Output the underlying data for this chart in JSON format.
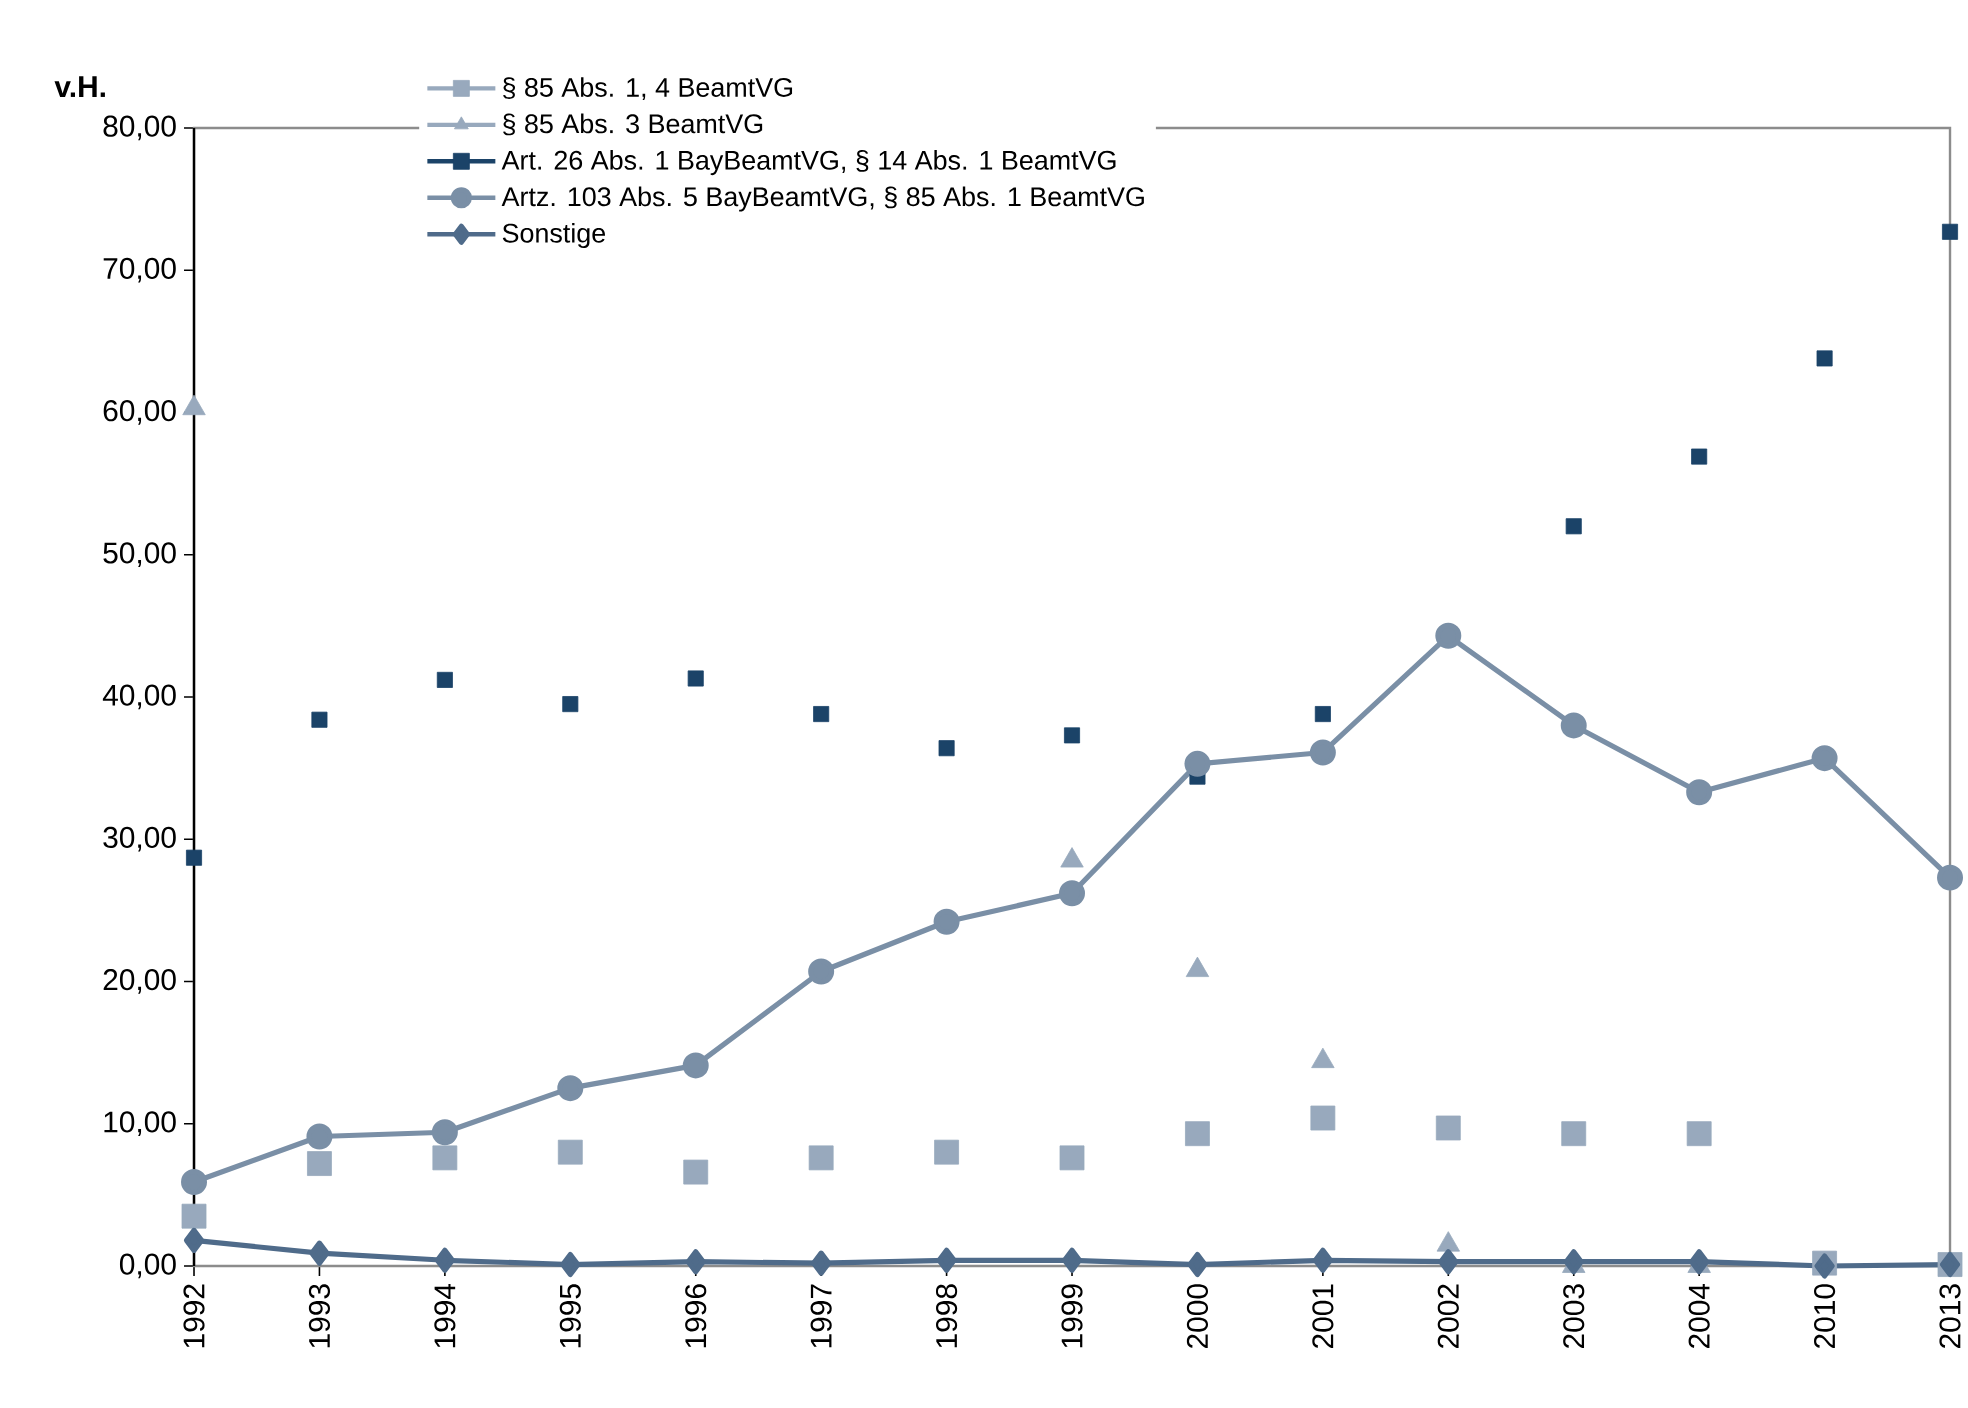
{
  "chart_data": {
    "type": "line",
    "ylabel": "v.H.",
    "categories": [
      "1992",
      "1993",
      "1994",
      "1995",
      "1996",
      "1997",
      "1998",
      "1999",
      "2000",
      "2001",
      "2002",
      "2003",
      "2004",
      "2010",
      "2013"
    ],
    "series": [
      {
        "name": "§ 85 Abs. 1, 4 BeamtVG",
        "type": "scatter",
        "marker": "square",
        "color": "#98a9bd",
        "values": [
          3.5,
          7.2,
          7.6,
          8.0,
          6.6,
          7.6,
          8.0,
          7.6,
          9.3,
          10.4,
          9.7,
          9.3,
          9.3,
          0.2,
          0.1
        ]
      },
      {
        "name": "§ 85 Abs. 3 BeamtVG",
        "type": "scatter",
        "marker": "triangle",
        "color": "#98a9bd",
        "values": [
          60.3,
          null,
          null,
          null,
          null,
          null,
          null,
          28.5,
          20.8,
          14.4,
          1.5,
          0.0,
          0.0,
          null,
          null
        ]
      },
      {
        "name": "Art. 26 Abs. 1 BayBeamtVG, § 14 Abs. 1 BeamtVG",
        "type": "scatter",
        "marker": "square",
        "color": "#1b4368",
        "values": [
          28.7,
          38.4,
          41.2,
          39.5,
          41.3,
          38.8,
          36.4,
          37.3,
          34.4,
          38.8,
          null,
          52.0,
          56.9,
          63.8,
          72.7
        ]
      },
      {
        "name": "Artz. 103 Abs. 5 BayBeamtVG, § 85 Abs. 1 BeamtVG",
        "marker": "circle",
        "line_style": "solid",
        "color": "#7a8fa6",
        "values": [
          5.9,
          9.1,
          9.4,
          12.5,
          14.1,
          20.7,
          24.2,
          26.2,
          35.3,
          36.1,
          44.3,
          38.0,
          33.3,
          35.7,
          27.3
        ]
      },
      {
        "name": "Sonstige",
        "marker": "diamond",
        "line_style": "solid",
        "color": "#4f6b8a",
        "values": [
          1.8,
          0.9,
          0.4,
          0.1,
          0.3,
          0.2,
          0.4,
          0.4,
          0.1,
          0.4,
          0.3,
          0.3,
          0.3,
          0.0,
          0.1
        ]
      }
    ],
    "ylim": [
      0,
      80
    ],
    "yticks": [
      {
        "value": 0,
        "label": "0,00"
      },
      {
        "value": 10,
        "label": "10,00"
      },
      {
        "value": 20,
        "label": "20,00"
      },
      {
        "value": 30,
        "label": "30,00"
      },
      {
        "value": 40,
        "label": "40,00"
      },
      {
        "value": 50,
        "label": "50,00"
      },
      {
        "value": 60,
        "label": "60,00"
      },
      {
        "value": 70,
        "label": "70,00"
      },
      {
        "value": 80,
        "label": "80,00"
      }
    ],
    "grid": false,
    "legend": "top"
  }
}
